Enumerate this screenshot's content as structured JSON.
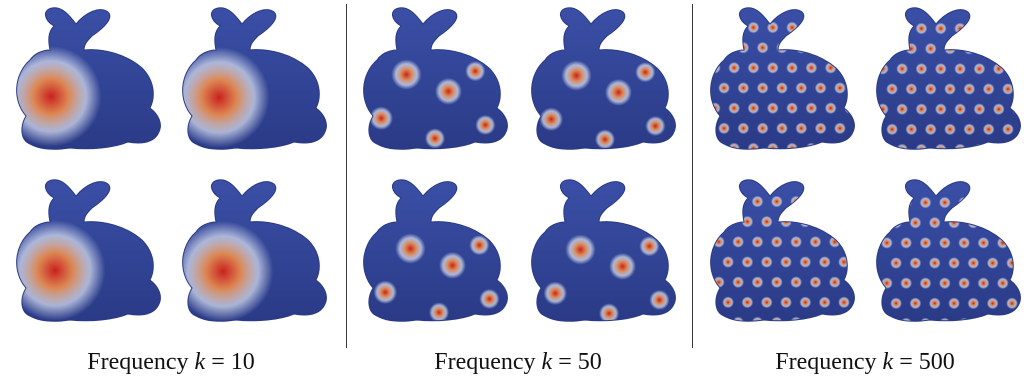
{
  "figure": {
    "panels": [
      {
        "caption_prefix": "Frequency",
        "k_symbol": "k",
        "k_value": "= 10",
        "spot_count_hint": "few-large"
      },
      {
        "caption_prefix": "Frequency",
        "k_symbol": "k",
        "k_value": "= 50",
        "spot_count_hint": "medium"
      },
      {
        "caption_prefix": "Frequency",
        "k_symbol": "k",
        "k_value": "= 500",
        "spot_count_hint": "many-small"
      }
    ],
    "colors": {
      "surface_blue": "#3a4fa6",
      "surface_dark": "#2a3a86",
      "highlight_white": "#dfe6f5",
      "hot_red": "#c9201e",
      "warm_orange": "#e58a4f"
    }
  }
}
